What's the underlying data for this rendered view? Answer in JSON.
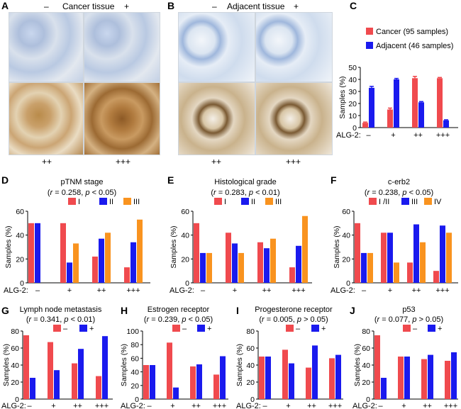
{
  "panel_letters": [
    "A",
    "B",
    "C",
    "D",
    "E",
    "F",
    "G",
    "H",
    "I",
    "J"
  ],
  "micrographs": {
    "cancer_title": "Cancer tissue",
    "adjacent_title": "Adjacent tissue",
    "top_labels": [
      "–",
      "+"
    ],
    "bottom_labels": [
      "++",
      "+++"
    ]
  },
  "colors": {
    "red": "#f04a4e",
    "blue": "#1a1aee",
    "orange": "#f9931f"
  },
  "chart_data": [
    {
      "panel": "C",
      "type": "bar",
      "categories": [
        "–",
        "+",
        "++",
        "+++"
      ],
      "category_axis_label": "ALG-2:",
      "ylabel": "Samples (%)",
      "ylim": [
        0,
        50
      ],
      "yticks": [
        0,
        10,
        20,
        30,
        40,
        50
      ],
      "legend": "top",
      "error_bars": true,
      "series": [
        {
          "name": "Cancer (95 samples)",
          "color": "#f04a4e",
          "values": [
            4,
            15,
            41,
            41
          ],
          "errors": [
            0.6,
            1.2,
            1.5,
            0.6
          ]
        },
        {
          "name": "Adjacent (46 samples)",
          "color": "#1a1aee",
          "values": [
            33,
            40,
            21,
            6
          ],
          "errors": [
            1.2,
            0.8,
            0.6,
            0.5
          ]
        }
      ]
    },
    {
      "panel": "D",
      "type": "bar",
      "title": "pTNM stage",
      "stat": {
        "r": "0.258",
        "p": "< 0.05"
      },
      "categories": [
        "–",
        "+",
        "++",
        "+++"
      ],
      "category_axis_label": "ALG-2:",
      "ylabel": "Samples (%)",
      "ylim": [
        0,
        60
      ],
      "yticks": [
        0,
        20,
        40,
        60
      ],
      "legend": "top",
      "series": [
        {
          "name": "I",
          "color": "#f04a4e",
          "values": [
            50,
            50,
            22,
            13
          ]
        },
        {
          "name": "II",
          "color": "#1a1aee",
          "values": [
            50,
            17,
            37,
            34
          ]
        },
        {
          "name": "III",
          "color": "#f9931f",
          "values": [
            0,
            33,
            42,
            53
          ]
        }
      ]
    },
    {
      "panel": "E",
      "type": "bar",
      "title": "Histological grade",
      "stat": {
        "r": "0.283",
        "p": "< 0.01"
      },
      "categories": [
        "–",
        "+",
        "++",
        "+++"
      ],
      "category_axis_label": "ALG-2:",
      "ylabel": "Samples (%)",
      "ylim": [
        0,
        60
      ],
      "yticks": [
        0,
        20,
        40,
        60
      ],
      "legend": "top",
      "series": [
        {
          "name": "I",
          "color": "#f04a4e",
          "values": [
            50,
            42,
            34,
            13
          ]
        },
        {
          "name": "II",
          "color": "#1a1aee",
          "values": [
            25,
            33,
            29,
            31
          ]
        },
        {
          "name": "III",
          "color": "#f9931f",
          "values": [
            25,
            25,
            37,
            56
          ]
        }
      ]
    },
    {
      "panel": "F",
      "type": "bar",
      "title": "c-erb2",
      "stat": {
        "r": "0.238",
        "p": "< 0.05"
      },
      "categories": [
        "–",
        "+",
        "++",
        "+++"
      ],
      "category_axis_label": "ALG-2:",
      "ylabel": "Samples (%)",
      "ylim": [
        0,
        60
      ],
      "yticks": [
        0,
        20,
        40,
        60
      ],
      "legend": "top",
      "series": [
        {
          "name": "I /II",
          "color": "#f04a4e",
          "values": [
            50,
            42,
            17,
            10
          ]
        },
        {
          "name": "III",
          "color": "#1a1aee",
          "values": [
            25,
            42,
            49,
            48
          ]
        },
        {
          "name": "IV",
          "color": "#f9931f",
          "values": [
            25,
            17,
            34,
            42
          ]
        }
      ]
    },
    {
      "panel": "G",
      "type": "bar",
      "title": "Lymph node metastasis",
      "stat": {
        "r": "0.341",
        "p": "< 0.01"
      },
      "categories": [
        "–",
        "+",
        "++",
        "+++"
      ],
      "category_axis_label": "ALG-2:",
      "ylabel": "Samples (%)",
      "ylim": [
        0,
        80
      ],
      "yticks": [
        0,
        20,
        40,
        60,
        80
      ],
      "legend": "top",
      "series": [
        {
          "name": "–",
          "color": "#f04a4e",
          "values": [
            75,
            67,
            42,
            27
          ]
        },
        {
          "name": "+",
          "color": "#1a1aee",
          "values": [
            25,
            34,
            59,
            74
          ]
        }
      ]
    },
    {
      "panel": "H",
      "type": "bar",
      "title": "Estrogen receptor",
      "stat": {
        "r": "0.239",
        "p": "< 0.05"
      },
      "categories": [
        "–",
        "+",
        "++",
        "+++"
      ],
      "category_axis_label": "ALG-2:",
      "ylabel": "Samples (%)",
      "ylim": [
        0,
        100
      ],
      "yticks": [
        0,
        20,
        40,
        60,
        80,
        100
      ],
      "legend": "top",
      "series": [
        {
          "name": "–",
          "color": "#f04a4e",
          "values": [
            50,
            83,
            48,
            36
          ]
        },
        {
          "name": "+",
          "color": "#1a1aee",
          "values": [
            50,
            17,
            51,
            63
          ]
        }
      ]
    },
    {
      "panel": "I",
      "type": "bar",
      "title": "Progesterone receptor",
      "stat": {
        "r": "0.005",
        "p": "> 0.05"
      },
      "categories": [
        "–",
        "+",
        "++",
        "+++"
      ],
      "category_axis_label": "ALG-2:",
      "ylabel": "Samples (%)",
      "ylim": [
        0,
        80
      ],
      "yticks": [
        0,
        20,
        40,
        60,
        80
      ],
      "legend": "top",
      "series": [
        {
          "name": "–",
          "color": "#f04a4e",
          "values": [
            50,
            58,
            37,
            48
          ]
        },
        {
          "name": "+",
          "color": "#1a1aee",
          "values": [
            50,
            42,
            63,
            52
          ]
        }
      ]
    },
    {
      "panel": "J",
      "type": "bar",
      "title": "p53",
      "stat": {
        "r": "0.077",
        "p": "> 0.05"
      },
      "categories": [
        "–",
        "+",
        "++",
        "+++"
      ],
      "category_axis_label": "ALG-2:",
      "ylabel": "Samples (%)",
      "ylim": [
        0,
        80
      ],
      "yticks": [
        0,
        20,
        40,
        60,
        80
      ],
      "legend": "top",
      "series": [
        {
          "name": "–",
          "color": "#f04a4e",
          "values": [
            75,
            50,
            47,
            45
          ]
        },
        {
          "name": "+",
          "color": "#1a1aee",
          "values": [
            25,
            50,
            52,
            55
          ]
        }
      ]
    }
  ]
}
